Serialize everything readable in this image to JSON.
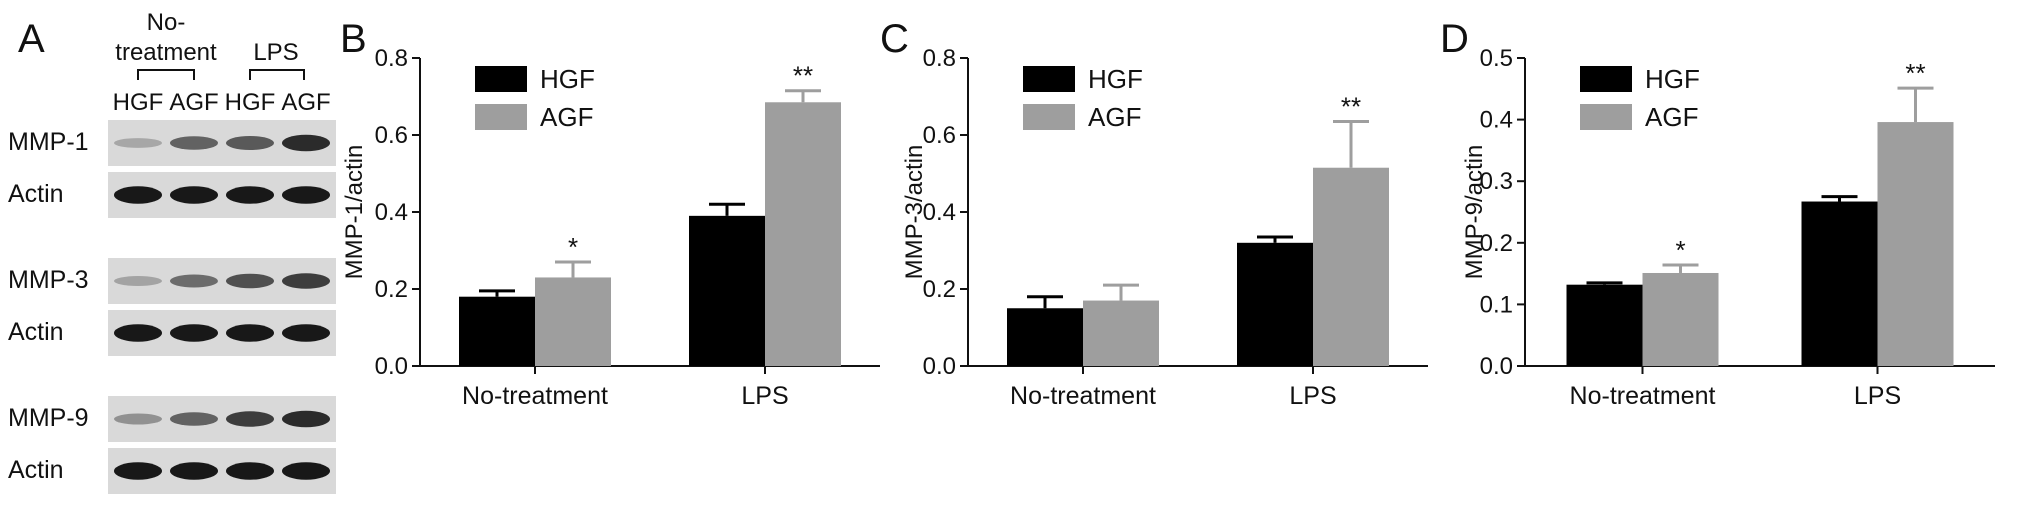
{
  "panel_a": {
    "letter": "A",
    "group_labels": {
      "no_treatment_line1": "No-",
      "no_treatment_line2": "treatment",
      "lps": "LPS"
    },
    "lane_labels": [
      "HGF",
      "AGF",
      "HGF",
      "AGF"
    ],
    "blots": [
      {
        "label": "MMP-1",
        "intensities": [
          0.18,
          0.55,
          0.6,
          0.85
        ]
      },
      {
        "label": "Actin",
        "intensities": [
          0.95,
          0.95,
          0.95,
          0.95
        ]
      },
      {
        "label": "MMP-3",
        "intensities": [
          0.2,
          0.5,
          0.65,
          0.75
        ]
      },
      {
        "label": "Actin",
        "intensities": [
          0.95,
          0.95,
          0.95,
          0.95
        ]
      },
      {
        "label": "MMP-9",
        "intensities": [
          0.3,
          0.55,
          0.75,
          0.85
        ]
      },
      {
        "label": "Actin",
        "intensities": [
          0.95,
          0.95,
          0.95,
          0.95
        ]
      }
    ]
  },
  "colors": {
    "HGF": "#000000",
    "AGF": "#9e9e9e"
  },
  "chart_data": [
    {
      "type": "bar",
      "letter": "B",
      "categories": [
        "No-treatment",
        "LPS"
      ],
      "series": [
        {
          "name": "HGF",
          "values": [
            0.18,
            0.39
          ],
          "errors": [
            0.015,
            0.03
          ]
        },
        {
          "name": "AGF",
          "values": [
            0.23,
            0.685
          ],
          "errors": [
            0.04,
            0.03
          ]
        }
      ],
      "significance": [
        [
          "",
          "*"
        ],
        [
          "",
          "**"
        ]
      ],
      "ylabel": "MMP-1/actin",
      "ylim": [
        0,
        0.8
      ],
      "yticks": [
        "0.0",
        "0.2",
        "0.4",
        "0.6",
        "0.8"
      ],
      "legend": "top-left"
    },
    {
      "type": "bar",
      "letter": "C",
      "categories": [
        "No-treatment",
        "LPS"
      ],
      "series": [
        {
          "name": "HGF",
          "values": [
            0.15,
            0.32
          ],
          "errors": [
            0.03,
            0.015
          ]
        },
        {
          "name": "AGF",
          "values": [
            0.17,
            0.515
          ],
          "errors": [
            0.04,
            0.12
          ]
        }
      ],
      "significance": [
        [
          "",
          ""
        ],
        [
          "",
          "**"
        ]
      ],
      "ylabel": "MMP-3/actin",
      "ylim": [
        0,
        0.8
      ],
      "yticks": [
        "0.0",
        "0.2",
        "0.4",
        "0.6",
        "0.8"
      ],
      "legend": "top-left"
    },
    {
      "type": "bar",
      "letter": "D",
      "categories": [
        "No-treatment",
        "LPS"
      ],
      "series": [
        {
          "name": "HGF",
          "values": [
            0.132,
            0.267
          ],
          "errors": [
            0.003,
            0.008
          ]
        },
        {
          "name": "AGF",
          "values": [
            0.151,
            0.396
          ],
          "errors": [
            0.013,
            0.055
          ]
        }
      ],
      "significance": [
        [
          "",
          "*"
        ],
        [
          "",
          "**"
        ]
      ],
      "ylabel": "MMP-9/actin",
      "ylim": [
        0,
        0.5
      ],
      "yticks": [
        "0.0",
        "0.1",
        "0.2",
        "0.3",
        "0.4",
        "0.5"
      ],
      "legend": "top-left"
    }
  ]
}
